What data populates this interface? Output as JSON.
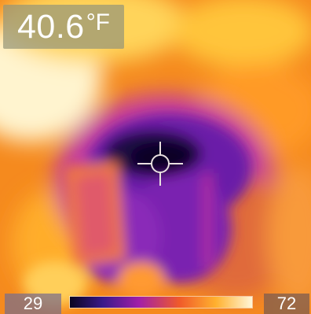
{
  "readout": {
    "value": "40.6",
    "unit": "°F"
  },
  "scale": {
    "min_label": "29",
    "max_label": "72"
  },
  "palette": {
    "cold": "#1b0a3a",
    "mid_cold": "#4a1390",
    "mid": "#a420b0",
    "warm": "#f06a1f",
    "hot": "#ffe59a",
    "hottest": "#fff7d6"
  }
}
